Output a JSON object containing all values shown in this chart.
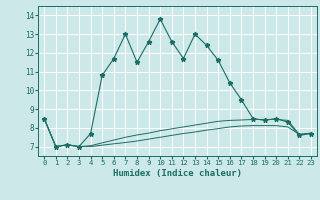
{
  "xlabel": "Humidex (Indice chaleur)",
  "xlim": [
    -0.5,
    23.5
  ],
  "ylim": [
    6.5,
    14.5
  ],
  "xticks": [
    0,
    1,
    2,
    3,
    4,
    5,
    6,
    7,
    8,
    9,
    10,
    11,
    12,
    13,
    14,
    15,
    16,
    17,
    18,
    19,
    20,
    21,
    22,
    23
  ],
  "yticks": [
    7,
    8,
    9,
    10,
    11,
    12,
    13,
    14
  ],
  "background_color": "#cde8e8",
  "grid_color": "#ffffff",
  "line_color": "#1a6e64",
  "series1_x": [
    0,
    1,
    2,
    3,
    4,
    5,
    6,
    7,
    8,
    9,
    10,
    11,
    12,
    13,
    14,
    15,
    16,
    17,
    18,
    19,
    20,
    21,
    22,
    23
  ],
  "series1_y": [
    8.5,
    7.0,
    7.1,
    7.0,
    7.7,
    10.8,
    11.7,
    13.0,
    11.5,
    12.6,
    13.8,
    12.6,
    11.7,
    13.0,
    12.4,
    11.6,
    10.4,
    9.5,
    8.5,
    8.4,
    8.5,
    8.3,
    7.6,
    7.7
  ],
  "series2_x": [
    0,
    1,
    2,
    3,
    4,
    5,
    6,
    7,
    8,
    9,
    10,
    11,
    12,
    13,
    14,
    15,
    16,
    17,
    18,
    19,
    20,
    21,
    22,
    23
  ],
  "series2_y": [
    8.5,
    7.0,
    7.1,
    7.0,
    7.05,
    7.2,
    7.35,
    7.5,
    7.62,
    7.72,
    7.85,
    7.95,
    8.05,
    8.15,
    8.25,
    8.35,
    8.4,
    8.42,
    8.45,
    8.45,
    8.45,
    8.4,
    7.65,
    7.72
  ],
  "series3_x": [
    0,
    1,
    2,
    3,
    4,
    5,
    6,
    7,
    8,
    9,
    10,
    11,
    12,
    13,
    14,
    15,
    16,
    17,
    18,
    19,
    20,
    21,
    22,
    23
  ],
  "series3_y": [
    8.5,
    7.0,
    7.1,
    7.0,
    7.0,
    7.08,
    7.15,
    7.22,
    7.3,
    7.4,
    7.5,
    7.6,
    7.7,
    7.78,
    7.88,
    7.96,
    8.05,
    8.1,
    8.12,
    8.12,
    8.12,
    8.05,
    7.65,
    7.72
  ]
}
